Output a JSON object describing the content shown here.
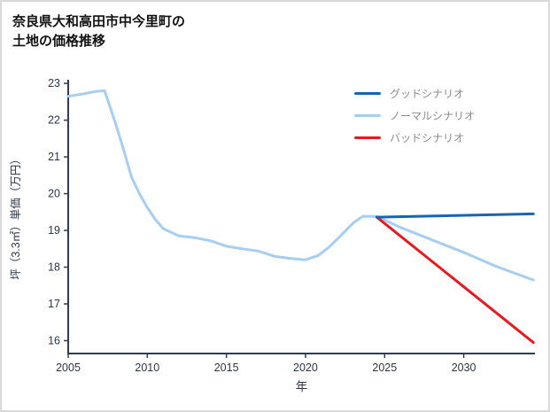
{
  "header": {
    "title_line1": "奈良県大和高田市中今里町の",
    "title_line2": "土地の価格推移"
  },
  "legend": {
    "items": [
      {
        "label": "グッドシナリオ",
        "color": "#1565b4"
      },
      {
        "label": "ノーマルシナリオ",
        "color": "#a6cdf2"
      },
      {
        "label": "バッドシナリオ",
        "color": "#e8191f"
      }
    ]
  },
  "chart_data": {
    "type": "line",
    "title": "奈良県大和高田市中今里町の土地の価格推移",
    "xlabel": "年",
    "ylabel": "坪（3.3㎡）単価（万円）",
    "xlim": [
      2005,
      2034.5
    ],
    "ylim": [
      15.65,
      23.1
    ],
    "xticks": [
      2005,
      2010,
      2015,
      2020,
      2025,
      2030
    ],
    "yticks": [
      16,
      17,
      18,
      19,
      20,
      21,
      22,
      23
    ],
    "grid": false,
    "legend_position": "top-right",
    "axis_color": "#2e3d51",
    "tick_label_color": "#2b3648",
    "series": [
      {
        "name": "ノーマルシナリオ",
        "color": "#a6cdf2",
        "width": 3,
        "x": [
          2005,
          2006,
          2006.7,
          2007.3,
          2008,
          2008.5,
          2009,
          2009.5,
          2010,
          2010.5,
          2011,
          2012,
          2013,
          2014,
          2015,
          2016,
          2017,
          2018,
          2019,
          2020,
          2020.8,
          2021.5,
          2022.2,
          2023,
          2023.6,
          2024.5,
          2026,
          2028,
          2030,
          2032,
          2034.4
        ],
        "y": [
          22.65,
          22.72,
          22.78,
          22.8,
          21.9,
          21.2,
          20.45,
          20.0,
          19.62,
          19.3,
          19.05,
          18.85,
          18.8,
          18.72,
          18.57,
          18.5,
          18.44,
          18.3,
          18.24,
          18.2,
          18.32,
          18.55,
          18.85,
          19.2,
          19.38,
          19.38,
          19.08,
          18.74,
          18.4,
          18.03,
          17.65
        ]
      },
      {
        "name": "バッドシナリオ",
        "color": "#e8191f",
        "width": 3,
        "x": [
          2024.5,
          2034.4
        ],
        "y": [
          19.36,
          15.95
        ]
      },
      {
        "name": "グッドシナリオ",
        "color": "#1565b4",
        "width": 3,
        "x": [
          2024.5,
          2034.4
        ],
        "y": [
          19.36,
          19.45
        ]
      }
    ]
  }
}
